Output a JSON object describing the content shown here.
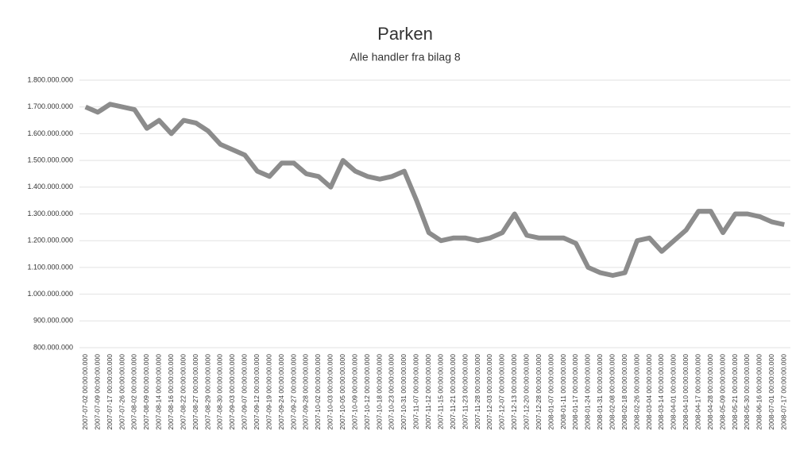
{
  "chart_data": {
    "type": "line",
    "title": "Parken",
    "subtitle": "Alle handler fra bilag 8",
    "categories": [
      "2007-07-02 00:00:00.000",
      "2007-07-09 00:00:00.000",
      "2007-07-17 00:00:00.000",
      "2007-07-26 00:00:00.000",
      "2007-08-02 00:00:00.000",
      "2007-08-09 00:00:00.000",
      "2007-08-14 00:00:00.000",
      "2007-08-16 00:00:00.000",
      "2007-08-22 00:00:00.000",
      "2007-08-27 00:00:00.000",
      "2007-08-29 00:00:00.000",
      "2007-08-30 00:00:00.000",
      "2007-09-03 00:00:00.000",
      "2007-09-07 00:00:00.000",
      "2007-09-12 00:00:00.000",
      "2007-09-19 00:00:00.000",
      "2007-09-24 00:00:00.000",
      "2007-09-27 00:00:00.000",
      "2007-09-28 00:00:00.000",
      "2007-10-02 00:00:00.000",
      "2007-10-03 00:00:00.000",
      "2007-10-05 00:00:00.000",
      "2007-10-09 00:00:00.000",
      "2007-10-12 00:00:00.000",
      "2007-10-18 00:00:00.000",
      "2007-10-23 00:00:00.000",
      "2007-10-31 00:00:00.000",
      "2007-11-07 00:00:00.000",
      "2007-11-12 00:00:00.000",
      "2007-11-15 00:00:00.000",
      "2007-11-21 00:00:00.000",
      "2007-11-23 00:00:00.000",
      "2007-11-28 00:00:00.000",
      "2007-12-03 00:00:00.000",
      "2007-12-07 00:00:00.000",
      "2007-12-13 00:00:00.000",
      "2007-12-20 00:00:00.000",
      "2007-12-28 00:00:00.000",
      "2008-01-07 00:00:00.000",
      "2008-01-11 00:00:00.000",
      "2008-01-17 00:00:00.000",
      "2008-01-24 00:00:00.000",
      "2008-01-31 00:00:00.000",
      "2008-02-08 00:00:00.000",
      "2008-02-18 00:00:00.000",
      "2008-02-26 00:00:00.000",
      "2008-03-04 00:00:00.000",
      "2008-03-14 00:00:00.000",
      "2008-04-01 00:00:00.000",
      "2008-04-10 00:00:00.000",
      "2008-04-17 00:00:00.000",
      "2008-04-28 00:00:00.000",
      "2008-05-09 00:00:00.000",
      "2008-05-21 00:00:00.000",
      "2008-05-30 00:00:00.000",
      "2008-06-16 00:00:00.000",
      "2008-07-01 00:00:00.000",
      "2008-07-17 00:00:00.000"
    ],
    "series": [
      {
        "name": "Parken",
        "color": "#8c8c8c",
        "values": [
          1700000000,
          1680000000,
          1710000000,
          1700000000,
          1690000000,
          1620000000,
          1650000000,
          1600000000,
          1650000000,
          1640000000,
          1610000000,
          1560000000,
          1540000000,
          1520000000,
          1460000000,
          1440000000,
          1490000000,
          1490000000,
          1450000000,
          1440000000,
          1400000000,
          1500000000,
          1460000000,
          1440000000,
          1430000000,
          1440000000,
          1460000000,
          1350000000,
          1230000000,
          1200000000,
          1210000000,
          1210000000,
          1200000000,
          1210000000,
          1230000000,
          1300000000,
          1220000000,
          1210000000,
          1210000000,
          1210000000,
          1190000000,
          1100000000,
          1080000000,
          1070000000,
          1080000000,
          1200000000,
          1210000000,
          1160000000,
          1200000000,
          1240000000,
          1310000000,
          1310000000,
          1230000000,
          1300000000,
          1300000000,
          1290000000,
          1270000000,
          1260000000
        ]
      }
    ],
    "ylim": [
      800000000,
      1800000000
    ],
    "yticks": [
      {
        "value": 800000000,
        "label": "800.000.000"
      },
      {
        "value": 900000000,
        "label": "900.000.000"
      },
      {
        "value": 1000000000,
        "label": "1.000.000.000"
      },
      {
        "value": 1100000000,
        "label": "1.100.000.000"
      },
      {
        "value": 1200000000,
        "label": "1.200.000.000"
      },
      {
        "value": 1300000000,
        "label": "1.300.000.000"
      },
      {
        "value": 1400000000,
        "label": "1.400.000.000"
      },
      {
        "value": 1500000000,
        "label": "1.500.000.000"
      },
      {
        "value": 1600000000,
        "label": "1.600.000.000"
      },
      {
        "value": 1700000000,
        "label": "1.700.000.000"
      },
      {
        "value": 1800000000,
        "label": "1.800.000.000"
      }
    ],
    "grid": true
  }
}
